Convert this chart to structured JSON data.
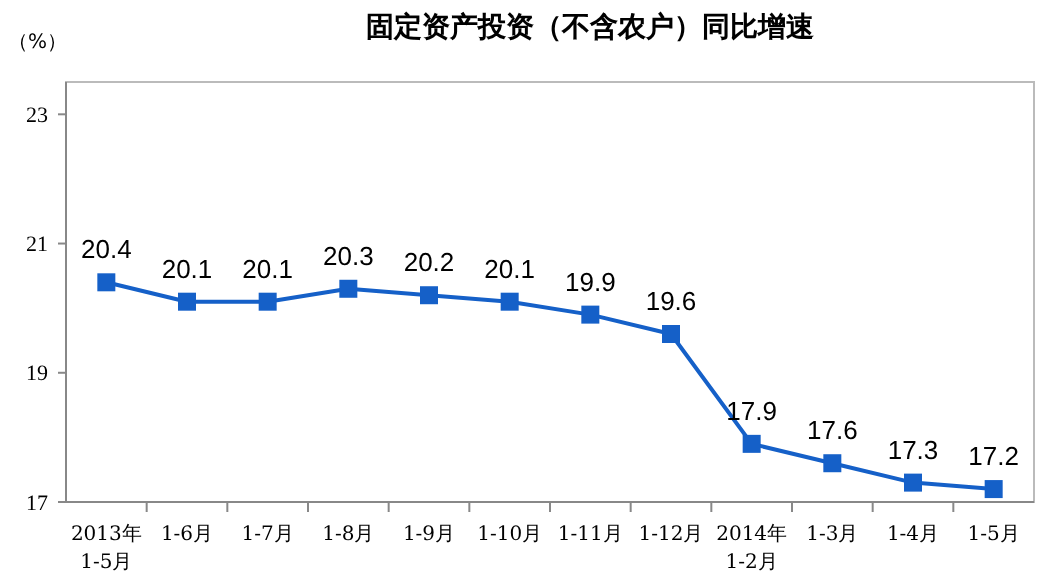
{
  "chart_data": {
    "type": "line",
    "title": "固定资产投资（不含农户）同比增速",
    "ylabel": "（%）",
    "categories": [
      "2013年\n1-5月",
      "1-6月",
      "1-7月",
      "1-8月",
      "1-9月",
      "1-10月",
      "1-11月",
      "1-12月",
      "2014年\n1-2月",
      "1-3月",
      "1-4月",
      "1-5月"
    ],
    "series": [
      {
        "color": "#1560c8",
        "values": [
          20.4,
          20.1,
          20.1,
          20.3,
          20.2,
          20.1,
          19.9,
          19.6,
          17.9,
          17.6,
          17.3,
          17.2
        ]
      }
    ],
    "ylim": [
      17,
      23.5
    ],
    "yticks": [
      17,
      19,
      21,
      23
    ],
    "grid": false,
    "marker": "square",
    "line_style": "solid",
    "data_labels": true
  }
}
